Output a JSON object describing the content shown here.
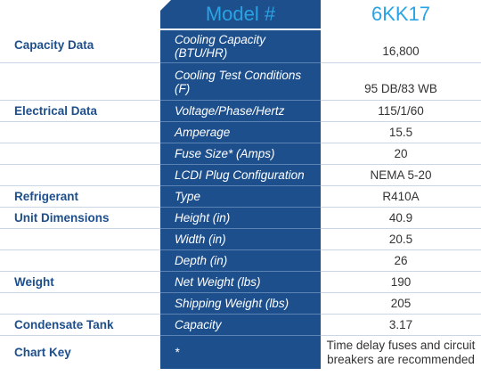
{
  "header": {
    "model_label": "Model #",
    "model_value": "6KK17"
  },
  "rows": [
    {
      "category": "Capacity Data",
      "property": "Cooling Capacity (BTU/HR)",
      "value": "16,800"
    },
    {
      "category": "",
      "property": "Cooling Test Conditions (F)",
      "value": "95 DB/83 WB"
    },
    {
      "category": "Electrical Data",
      "property": "Voltage/Phase/Hertz",
      "value": "115/1/60"
    },
    {
      "category": "",
      "property": "Amperage",
      "value": "15.5"
    },
    {
      "category": "",
      "property": "Fuse Size* (Amps)",
      "value": "20"
    },
    {
      "category": "",
      "property": "LCDI Plug Configuration",
      "value": "NEMA 5-20"
    },
    {
      "category": "Refrigerant",
      "property": "Type",
      "value": "R410A"
    },
    {
      "category": "Unit Dimensions",
      "property": "Height (in)",
      "value": "40.9"
    },
    {
      "category": "",
      "property": "Width (in)",
      "value": "20.5"
    },
    {
      "category": "",
      "property": "Depth (in)",
      "value": "26"
    },
    {
      "category": "Weight",
      "property": "Net Weight (lbs)",
      "value": "190"
    },
    {
      "category": "",
      "property": "Shipping Weight (lbs)",
      "value": "205"
    },
    {
      "category": "Condensate Tank",
      "property": "Capacity",
      "value": "3.17"
    },
    {
      "category": "Chart Key",
      "property": "*",
      "value": "Time delay fuses and circuit breakers are recommended"
    }
  ],
  "colors": {
    "navy": "#1d4f8c",
    "header_blue": "#29a3e4",
    "value_text": "#333333"
  }
}
